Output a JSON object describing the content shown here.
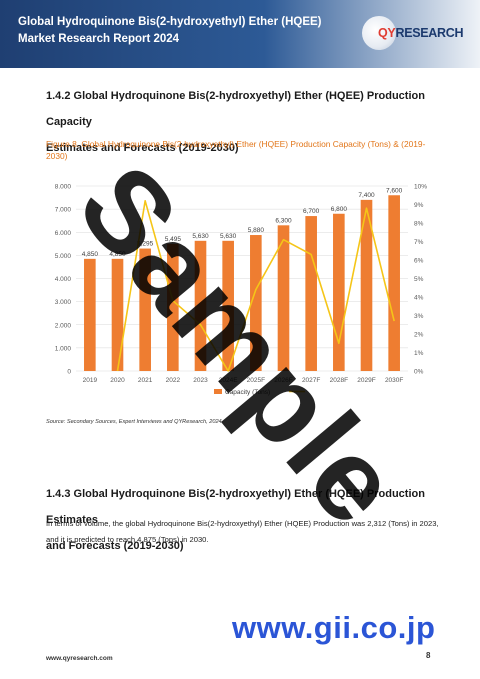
{
  "header": {
    "title": "Global Hydroquinone Bis(2-hydroxyethyl) Ether (HQEE) Market Research Report 2024",
    "logo_prefix": "QY",
    "logo_suffix": "RESEARCH"
  },
  "section1": {
    "heading_line1": "1.4.2  Global Hydroquinone Bis(2-hydroxyethyl) Ether (HQEE) Production Capacity",
    "heading_line2": "Estimates and Forecasts (2019-2030)"
  },
  "figure": {
    "caption": "Figure 8.  Global Hydroquinone Bis(2-hydroxyethyl) Ether (HQEE) Production Capacity (Tons) & (2019-2030)"
  },
  "chart_data": {
    "type": "bar",
    "categories": [
      "2019",
      "2020",
      "2021",
      "2022",
      "2023",
      "2024E",
      "2025F",
      "2026F",
      "2027F",
      "2028F",
      "2029F",
      "2030F"
    ],
    "series": [
      {
        "name": "Capacity (Tons)",
        "type": "bar",
        "axis": "left",
        "values": [
          4850,
          4850,
          5295,
          5495,
          5630,
          5630,
          5880,
          6300,
          6700,
          6800,
          7400,
          7600
        ],
        "labels": [
          "4,850",
          "4,850",
          "5,295",
          "5,495",
          "5,630",
          "5,630",
          "5,880",
          "6,300",
          "6,700",
          "6,800",
          "7,400",
          "7,600"
        ],
        "color": "#ee7d31"
      },
      {
        "type": "line",
        "axis": "right",
        "values": [
          null,
          0.0,
          9.2,
          3.8,
          2.5,
          0.0,
          4.4,
          7.1,
          6.3,
          1.5,
          8.8,
          2.7
        ],
        "color": "#f5c518"
      }
    ],
    "y_left": {
      "ticks": [
        "0",
        "1.000",
        "2.000",
        "3.000",
        "4.000",
        "5.000",
        "6.000",
        "7.000",
        "8.000"
      ],
      "min": 0,
      "max": 8000
    },
    "y_right": {
      "ticks": [
        "0%",
        "1%",
        "2%",
        "3%",
        "4%",
        "5%",
        "6%",
        "7%",
        "8%",
        "9%",
        "10%"
      ],
      "min": 0,
      "max": 10
    },
    "grid": true,
    "legend": "bottom"
  },
  "source": "Source: Secondary Sources, Expert Interviews and QYResearch, 2024",
  "section2": {
    "heading_line1": "1.4.3  Global Hydroquinone Bis(2-hydroxyethyl) Ether (HQEE) Production Estimates",
    "heading_line2": "and Forecasts (2019-2030)",
    "paragraph": "In terms of volume, the global Hydroquinone Bis(2-hydroxyethyl) Ether (HQEE) Production was 2,312 (Tons) in 2023, and it is predicted to reach 4,875 (Tons) in 2030."
  },
  "watermark": "Sample",
  "gii_url": "www.gii.co.jp",
  "footer": {
    "url": "www.qyresearch.com",
    "page": "8"
  }
}
